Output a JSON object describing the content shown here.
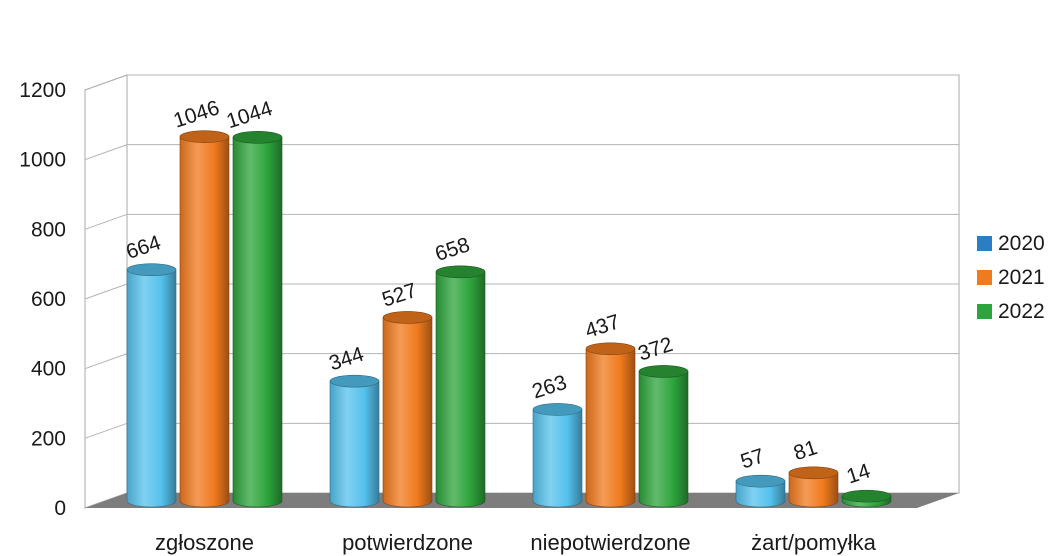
{
  "chart_data": {
    "type": "bar",
    "categories": [
      "zgłoszone",
      "potwierdzone",
      "niepotwierdzone",
      "żart/pomyłka"
    ],
    "series": [
      {
        "name": "2020",
        "values": [
          664,
          344,
          263,
          57
        ],
        "color": "#55c1ec"
      },
      {
        "name": "2021",
        "values": [
          1046,
          527,
          437,
          81
        ],
        "color": "#f07a1e"
      },
      {
        "name": "2022",
        "values": [
          1044,
          658,
          372,
          14
        ],
        "color": "#2ea43c"
      }
    ],
    "y_ticks": [
      "0",
      "200",
      "400",
      "600",
      "800",
      "1000",
      "1200"
    ],
    "ylim": [
      0,
      1200
    ],
    "grid": true,
    "legend": "right",
    "style": "3d cylinders"
  }
}
